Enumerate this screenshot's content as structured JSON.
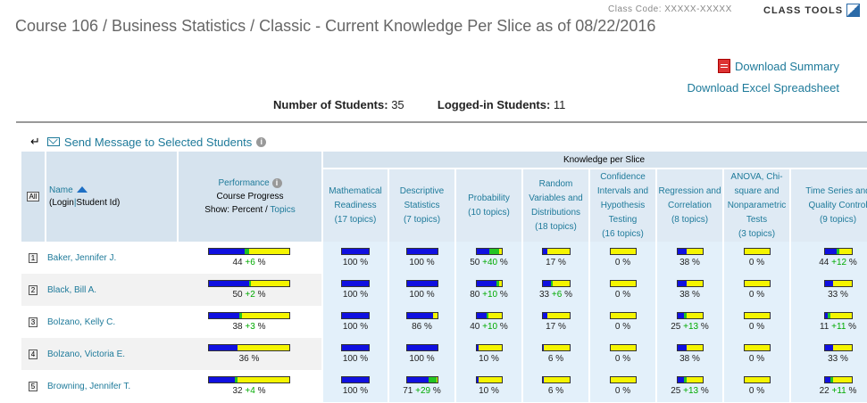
{
  "header": {
    "class_code": "Class Code: XXXXX-XXXXX",
    "class_tools": "CLASS TOOLS",
    "title": "Course 106 / Business Statistics / Classic - Current Knowledge Per Slice as of 08/22/2016"
  },
  "downloads": {
    "summary": "Download Summary",
    "excel": "Download Excel Spreadsheet"
  },
  "counts": {
    "students_label": "Number of Students:",
    "students_value": "35",
    "logged_label": "Logged-in Students:",
    "logged_value": "11"
  },
  "send_message": "Send Message to Selected Students",
  "table": {
    "all_label": "All",
    "name_header": "Name",
    "login_label": "(Login",
    "sep": "|",
    "student_id_label": "Student Id)",
    "performance_label": "Performance",
    "course_progress": "Course Progress",
    "show_label": "Show: Percent / ",
    "topics_link": "Topics",
    "kps_label": "Knowledge per Slice",
    "slices": [
      {
        "name": "Mathematical Readiness",
        "topics": "(17 topics)"
      },
      {
        "name": "Descriptive Statistics",
        "topics": "(7 topics)"
      },
      {
        "name": "Probability",
        "topics": "(10 topics)"
      },
      {
        "name": "Random Variables and Distributions",
        "topics": "(18 topics)"
      },
      {
        "name": "Confidence Intervals and Hypothesis Testing",
        "topics": "(16 topics)"
      },
      {
        "name": "Regression and Correlation",
        "topics": "(8 topics)"
      },
      {
        "name": "ANOVA, Chi-square and Nonparametric Tests",
        "topics": "(3 topics)"
      },
      {
        "name": "Time Series and Quality Control",
        "topics": "(9 topics)"
      }
    ]
  },
  "students": [
    {
      "num": "1",
      "name": "Baker, Jennifer J.",
      "perf": {
        "base": "44",
        "inc": "+6",
        "b": 44,
        "g": 6
      },
      "slices": [
        {
          "base": "100",
          "inc": "",
          "b": 100,
          "g": 0
        },
        {
          "base": "100",
          "inc": "",
          "b": 100,
          "g": 0
        },
        {
          "base": "50",
          "inc": "+40",
          "b": 50,
          "g": 40
        },
        {
          "base": "17",
          "inc": "",
          "b": 17,
          "g": 0
        },
        {
          "base": "0",
          "inc": "",
          "b": 0,
          "g": 0
        },
        {
          "base": "38",
          "inc": "",
          "b": 38,
          "g": 0
        },
        {
          "base": "0",
          "inc": "",
          "b": 0,
          "g": 0
        },
        {
          "base": "44",
          "inc": "+12",
          "b": 44,
          "g": 12
        }
      ]
    },
    {
      "num": "2",
      "name": "Black, Bill A.",
      "perf": {
        "base": "50",
        "inc": "+2",
        "b": 50,
        "g": 2
      },
      "slices": [
        {
          "base": "100",
          "inc": "",
          "b": 100,
          "g": 0
        },
        {
          "base": "100",
          "inc": "",
          "b": 100,
          "g": 0
        },
        {
          "base": "80",
          "inc": "+10",
          "b": 80,
          "g": 10
        },
        {
          "base": "33",
          "inc": "+6",
          "b": 33,
          "g": 6
        },
        {
          "base": "0",
          "inc": "",
          "b": 0,
          "g": 0
        },
        {
          "base": "38",
          "inc": "",
          "b": 38,
          "g": 0
        },
        {
          "base": "0",
          "inc": "",
          "b": 0,
          "g": 0
        },
        {
          "base": "33",
          "inc": "",
          "b": 33,
          "g": 0
        }
      ]
    },
    {
      "num": "3",
      "name": "Bolzano, Kelly C.",
      "perf": {
        "base": "38",
        "inc": "+3",
        "b": 38,
        "g": 3
      },
      "slices": [
        {
          "base": "100",
          "inc": "",
          "b": 100,
          "g": 0
        },
        {
          "base": "86",
          "inc": "",
          "b": 86,
          "g": 0
        },
        {
          "base": "40",
          "inc": "+10",
          "b": 40,
          "g": 10
        },
        {
          "base": "17",
          "inc": "",
          "b": 17,
          "g": 0
        },
        {
          "base": "0",
          "inc": "",
          "b": 0,
          "g": 0
        },
        {
          "base": "25",
          "inc": "+13",
          "b": 25,
          "g": 13
        },
        {
          "base": "0",
          "inc": "",
          "b": 0,
          "g": 0
        },
        {
          "base": "11",
          "inc": "+11",
          "b": 11,
          "g": 11
        }
      ]
    },
    {
      "num": "4",
      "name": "Bolzano, Victoria E.",
      "perf": {
        "base": "36",
        "inc": "",
        "b": 36,
        "g": 0
      },
      "slices": [
        {
          "base": "100",
          "inc": "",
          "b": 100,
          "g": 0
        },
        {
          "base": "100",
          "inc": "",
          "b": 100,
          "g": 0
        },
        {
          "base": "10",
          "inc": "",
          "b": 10,
          "g": 0
        },
        {
          "base": "6",
          "inc": "",
          "b": 6,
          "g": 0
        },
        {
          "base": "0",
          "inc": "",
          "b": 0,
          "g": 0
        },
        {
          "base": "38",
          "inc": "",
          "b": 38,
          "g": 0
        },
        {
          "base": "0",
          "inc": "",
          "b": 0,
          "g": 0
        },
        {
          "base": "33",
          "inc": "",
          "b": 33,
          "g": 0
        }
      ]
    },
    {
      "num": "5",
      "name": "Browning, Jennifer T.",
      "perf": {
        "base": "32",
        "inc": "+4",
        "b": 32,
        "g": 4
      },
      "slices": [
        {
          "base": "100",
          "inc": "",
          "b": 100,
          "g": 0
        },
        {
          "base": "71",
          "inc": "+29",
          "b": 71,
          "g": 29
        },
        {
          "base": "10",
          "inc": "",
          "b": 10,
          "g": 0
        },
        {
          "base": "6",
          "inc": "",
          "b": 6,
          "g": 0
        },
        {
          "base": "0",
          "inc": "",
          "b": 0,
          "g": 0
        },
        {
          "base": "25",
          "inc": "+13",
          "b": 25,
          "g": 13
        },
        {
          "base": "0",
          "inc": "",
          "b": 0,
          "g": 0
        },
        {
          "base": "22",
          "inc": "+11",
          "b": 22,
          "g": 11
        }
      ]
    }
  ]
}
